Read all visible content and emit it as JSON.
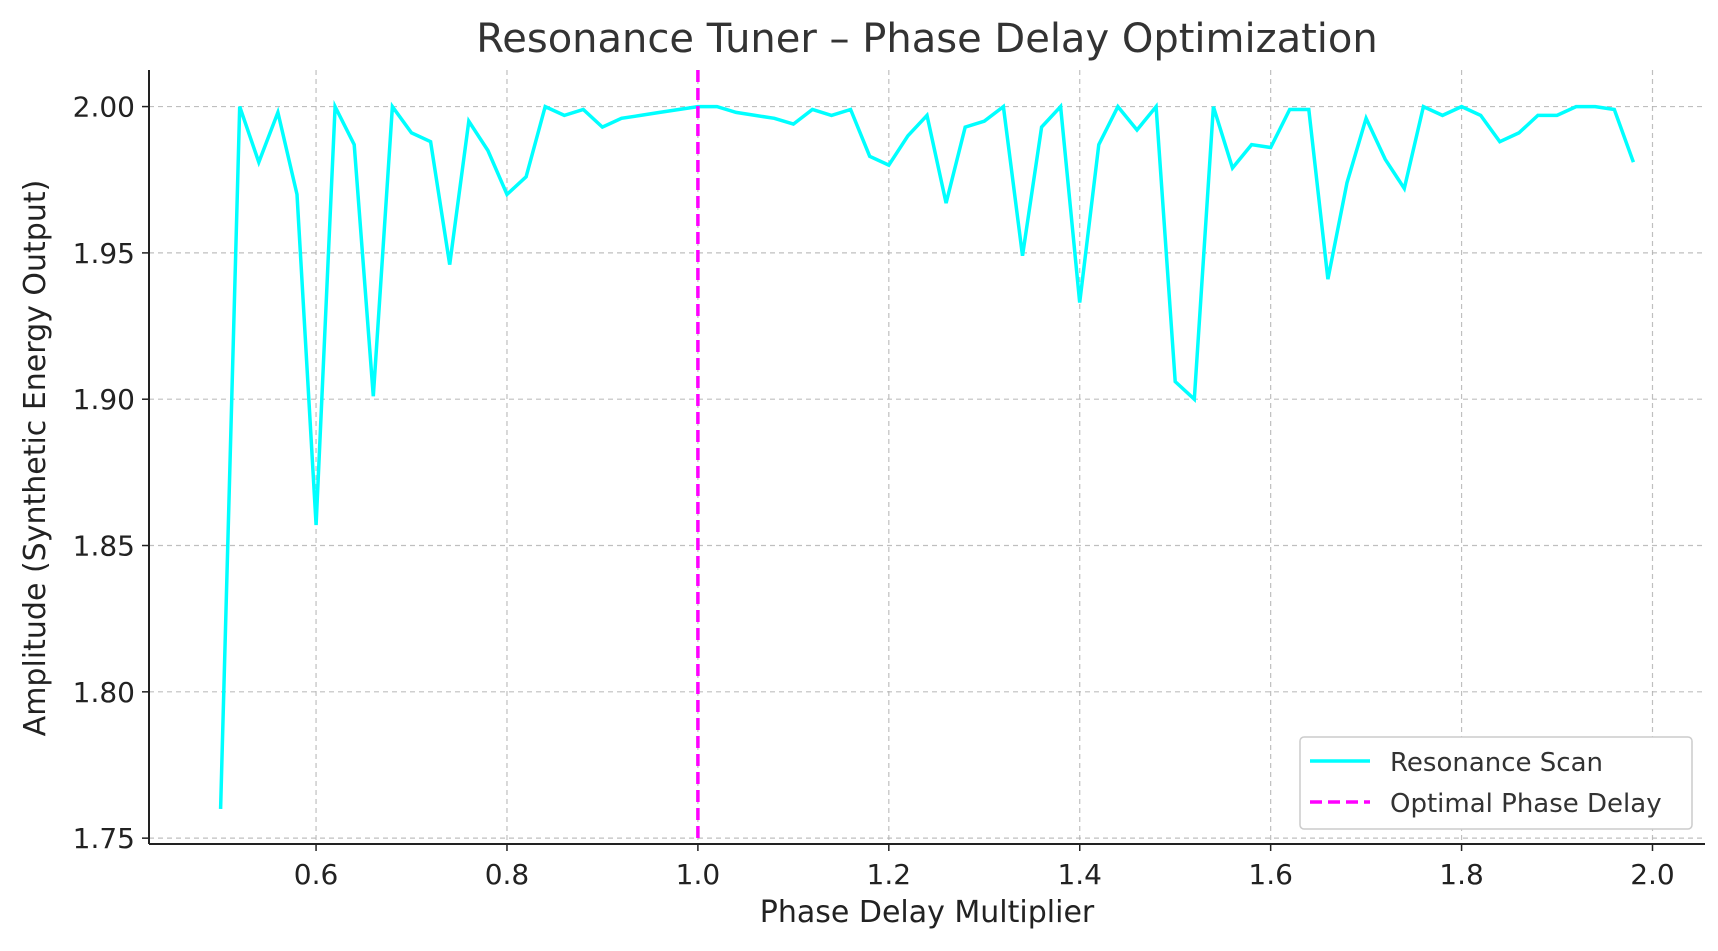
{
  "chart_data": {
    "type": "line",
    "title": "Resonance Tuner – Phase Delay Optimization",
    "xlabel": "Phase Delay Multiplier",
    "ylabel": "Amplitude (Synthetic Energy Output)",
    "xlim": [
      0.425,
      2.055
    ],
    "ylim": [
      1.748,
      2.0125
    ],
    "x_ticks": [
      0.6,
      0.8,
      1.0,
      1.2,
      1.4,
      1.6,
      1.8,
      2.0
    ],
    "x_tick_labels": [
      "0.6",
      "0.8",
      "1.0",
      "1.2",
      "1.4",
      "1.6",
      "1.8",
      "2.0"
    ],
    "y_ticks": [
      1.75,
      1.8,
      1.85,
      1.9,
      1.95,
      2.0
    ],
    "y_tick_labels": [
      "1.75",
      "1.80",
      "1.85",
      "1.90",
      "1.95",
      "2.00"
    ],
    "grid": true,
    "legend_position": "lower-right",
    "series": [
      {
        "name": "Resonance Scan",
        "color": "#00ffff",
        "style": "solid",
        "x": [
          0.5,
          0.52,
          0.54,
          0.56,
          0.58,
          0.6,
          0.62,
          0.64,
          0.66,
          0.68,
          0.7,
          0.72,
          0.74,
          0.76,
          0.78,
          0.8,
          0.82,
          0.84,
          0.86,
          0.88,
          0.9,
          0.92,
          0.94,
          0.96,
          0.98,
          1.0,
          1.02,
          1.04,
          1.06,
          1.08,
          1.1,
          1.12,
          1.14,
          1.16,
          1.18,
          1.2,
          1.22,
          1.24,
          1.26,
          1.28,
          1.3,
          1.32,
          1.34,
          1.36,
          1.38,
          1.4,
          1.42,
          1.44,
          1.46,
          1.48,
          1.5,
          1.52,
          1.54,
          1.56,
          1.58,
          1.6,
          1.62,
          1.64,
          1.66,
          1.68,
          1.7,
          1.72,
          1.74,
          1.76,
          1.78,
          1.8,
          1.82,
          1.84,
          1.86,
          1.88,
          1.9,
          1.92,
          1.94,
          1.96,
          1.98
        ],
        "y": [
          1.76,
          2.0,
          1.981,
          1.998,
          1.97,
          1.857,
          2.0,
          1.987,
          1.901,
          2.0,
          1.991,
          1.988,
          1.946,
          1.995,
          1.985,
          1.97,
          1.976,
          2.0,
          1.997,
          1.999,
          1.993,
          1.996,
          1.997,
          1.998,
          1.999,
          2.0,
          2.0,
          1.998,
          1.997,
          1.996,
          1.994,
          1.999,
          1.997,
          1.999,
          1.983,
          1.98,
          1.99,
          1.997,
          1.967,
          1.993,
          1.995,
          2.0,
          1.949,
          1.993,
          2.0,
          1.933,
          1.987,
          2.0,
          1.992,
          2.0,
          1.906,
          1.9,
          2.0,
          1.979,
          1.987,
          1.986,
          1.999,
          1.999,
          1.941,
          1.974,
          1.996,
          1.982,
          1.972,
          2.0,
          1.997,
          2.0,
          1.997,
          1.988,
          1.991,
          1.997,
          1.997,
          2.0,
          2.0,
          1.999,
          1.981
        ]
      },
      {
        "name": "Optimal Phase Delay",
        "color": "#ff00ff",
        "style": "dashed",
        "vline_x": 1.0
      }
    ]
  }
}
